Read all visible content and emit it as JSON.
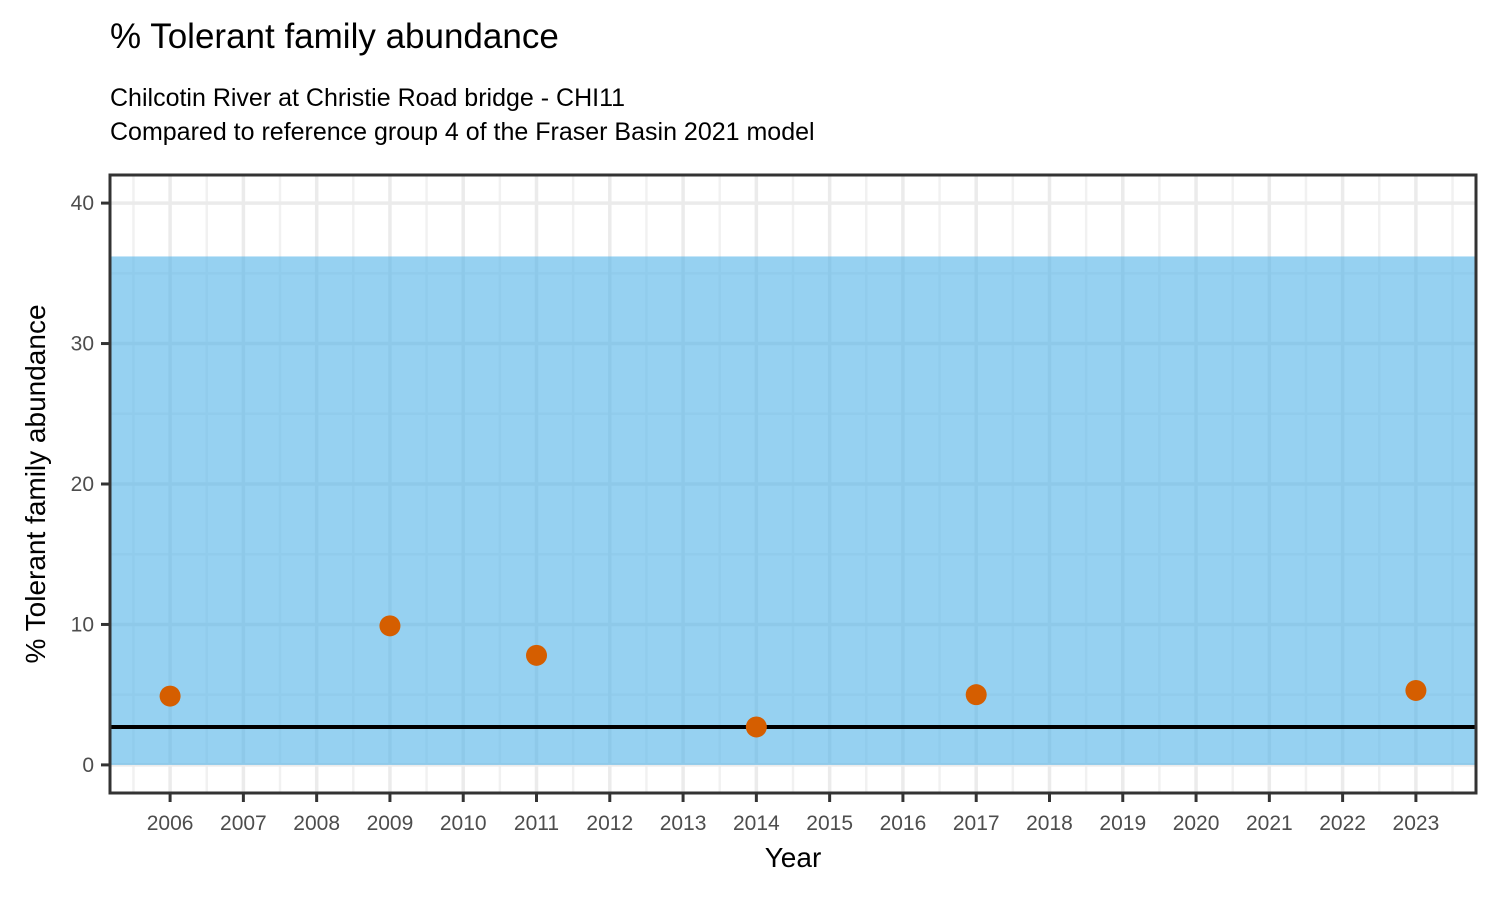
{
  "chart_data": {
    "type": "scatter",
    "title": "% Tolerant family abundance",
    "subtitle_line1": "Chilcotin River at Christie Road bridge - CHI11",
    "subtitle_line2": "Compared to reference group 4 of the Fraser Basin 2021 model",
    "xlabel": "Year",
    "ylabel": "% Tolerant family abundance",
    "series": [
      {
        "name": "observed-percent-tolerant-abundance",
        "points": [
          {
            "x": 2006,
            "y": 4.9
          },
          {
            "x": 2009,
            "y": 9.9
          },
          {
            "x": 2011,
            "y": 7.8
          },
          {
            "x": 2014,
            "y": 2.7
          },
          {
            "x": 2017,
            "y": 5.0
          },
          {
            "x": 2023,
            "y": 5.3
          }
        ],
        "color": "#D55E00",
        "marker_radius": 10.5
      }
    ],
    "reference_band": {
      "ymin": 0,
      "ymax": 36.2,
      "color": "#56B4E9",
      "opacity": 0.62
    },
    "reference_line": {
      "y": 2.7,
      "color": "#000000",
      "width": 4
    },
    "x_ticks": [
      2006,
      2007,
      2008,
      2009,
      2010,
      2011,
      2012,
      2013,
      2014,
      2015,
      2016,
      2017,
      2018,
      2019,
      2020,
      2021,
      2022,
      2023
    ],
    "y_ticks": [
      0,
      10,
      20,
      30,
      40
    ],
    "y_minor_ticks": [
      5,
      15,
      25,
      35
    ],
    "xlim": [
      2005.18,
      2023.82
    ],
    "ylim": [
      -2,
      42
    ],
    "grid": {
      "major_color": "#EBEBEB",
      "minor_color": "#F1F1F1",
      "major_width": 3.5,
      "minor_width": 2.5
    },
    "axis": {
      "tick_color": "#333333",
      "tick_label_color": "#4D4D4D",
      "tick_label_size": 21,
      "panel_border_color": "#333333",
      "panel_border_width": 3,
      "tick_length": 9
    }
  }
}
